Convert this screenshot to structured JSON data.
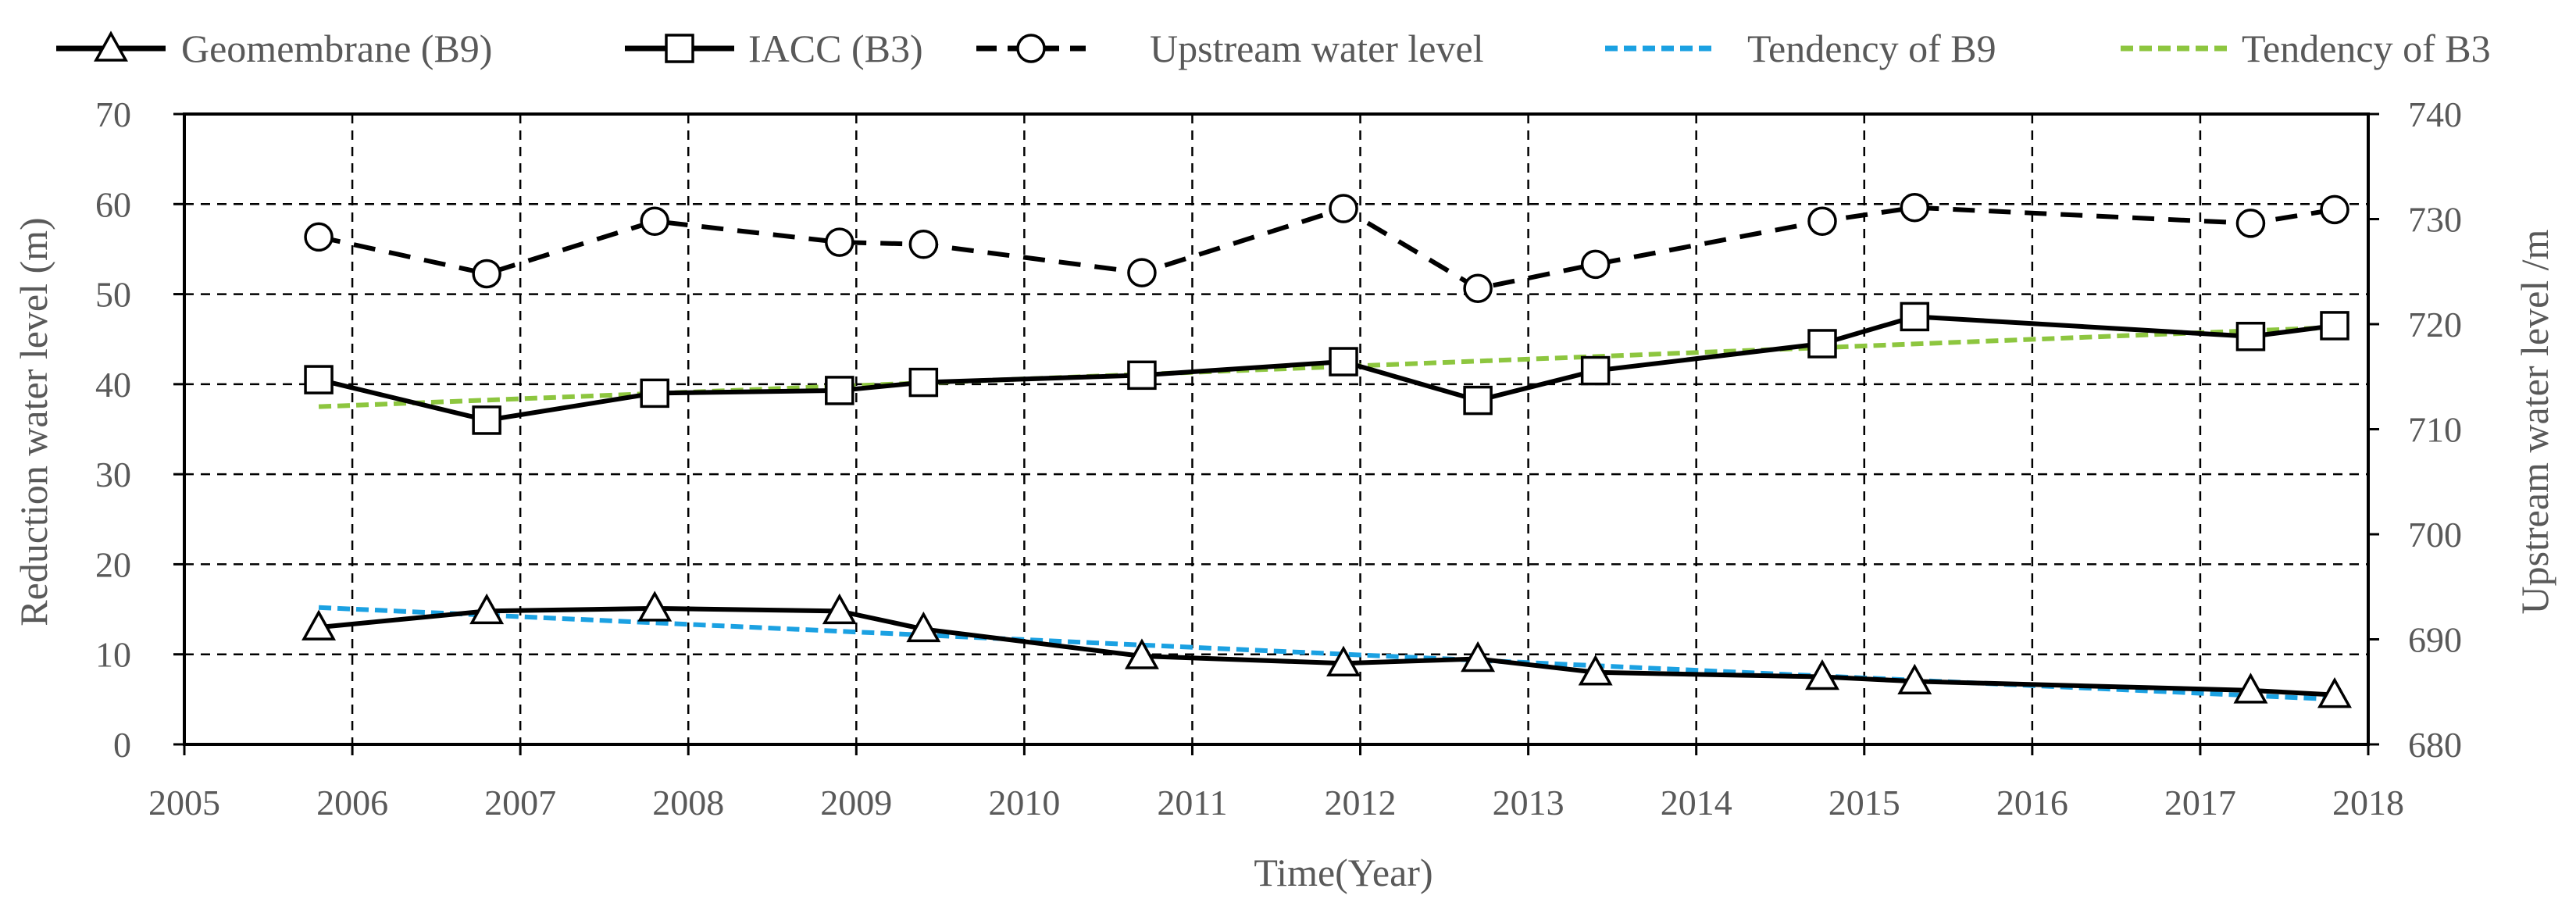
{
  "chart_data": {
    "type": "line",
    "title": "",
    "xlabel": "Time(Year)",
    "ylabel": "Reduction water level (m)",
    "y2label": "Upstream water level /m",
    "xlim": [
      2005,
      2018
    ],
    "ylim": [
      0,
      70
    ],
    "y2lim": [
      680,
      740
    ],
    "x_ticks": [
      "2005",
      "2006",
      "2007",
      "2008",
      "2009",
      "2010",
      "2011",
      "2012",
      "2013",
      "2014",
      "2015",
      "2016",
      "2017",
      "2018"
    ],
    "y_ticks": [
      "0",
      "10",
      "20",
      "30",
      "40",
      "50",
      "60",
      "70"
    ],
    "y2_ticks": [
      "680",
      "690",
      "700",
      "710",
      "720",
      "730",
      "740"
    ],
    "grid": true,
    "legend_position": "top",
    "series": [
      {
        "name": "Geomembrane (B9)",
        "axis": "left",
        "style": "solid",
        "marker": "triangle",
        "color": "#000000",
        "x": [
          2005.8,
          2006.8,
          2007.8,
          2008.9,
          2009.4,
          2010.7,
          2011.9,
          2012.7,
          2013.4,
          2014.75,
          2015.3,
          2017.3,
          2017.8
        ],
        "y": [
          13.0,
          14.8,
          15.1,
          14.8,
          12.8,
          9.8,
          9.0,
          9.5,
          8.0,
          7.5,
          7.0,
          6.0,
          5.5
        ]
      },
      {
        "name": "IACC (B3)",
        "axis": "left",
        "style": "solid",
        "marker": "square",
        "color": "#000000",
        "x": [
          2005.8,
          2006.8,
          2007.8,
          2008.9,
          2009.4,
          2010.7,
          2011.9,
          2012.7,
          2013.4,
          2014.75,
          2015.3,
          2017.3,
          2017.8
        ],
        "y": [
          40.5,
          36.0,
          39.0,
          39.3,
          40.2,
          41.0,
          42.5,
          38.2,
          41.5,
          44.5,
          47.5,
          45.3,
          46.5
        ]
      },
      {
        "name": "Upstream water level",
        "axis": "right",
        "style": "dashed",
        "marker": "circle",
        "color": "#000000",
        "x": [
          2005.8,
          2006.8,
          2007.8,
          2008.9,
          2009.4,
          2010.7,
          2011.9,
          2012.7,
          2013.4,
          2014.75,
          2015.3,
          2017.3,
          2017.8
        ],
        "y": [
          728.3,
          724.8,
          729.8,
          727.8,
          727.6,
          724.9,
          731.0,
          723.4,
          725.7,
          729.8,
          731.1,
          729.6,
          730.9
        ]
      },
      {
        "name": "Tendency of B9",
        "axis": "left",
        "style": "dashed",
        "marker": "none",
        "color": "#1BA1E2",
        "x": [
          2005.8,
          2017.8
        ],
        "y": [
          15.2,
          5.0
        ]
      },
      {
        "name": "Tendency of B3",
        "axis": "left",
        "style": "dashed",
        "marker": "none",
        "color": "#8DC63F",
        "x": [
          2005.8,
          2017.8
        ],
        "y": [
          37.5,
          46.3
        ]
      }
    ]
  }
}
